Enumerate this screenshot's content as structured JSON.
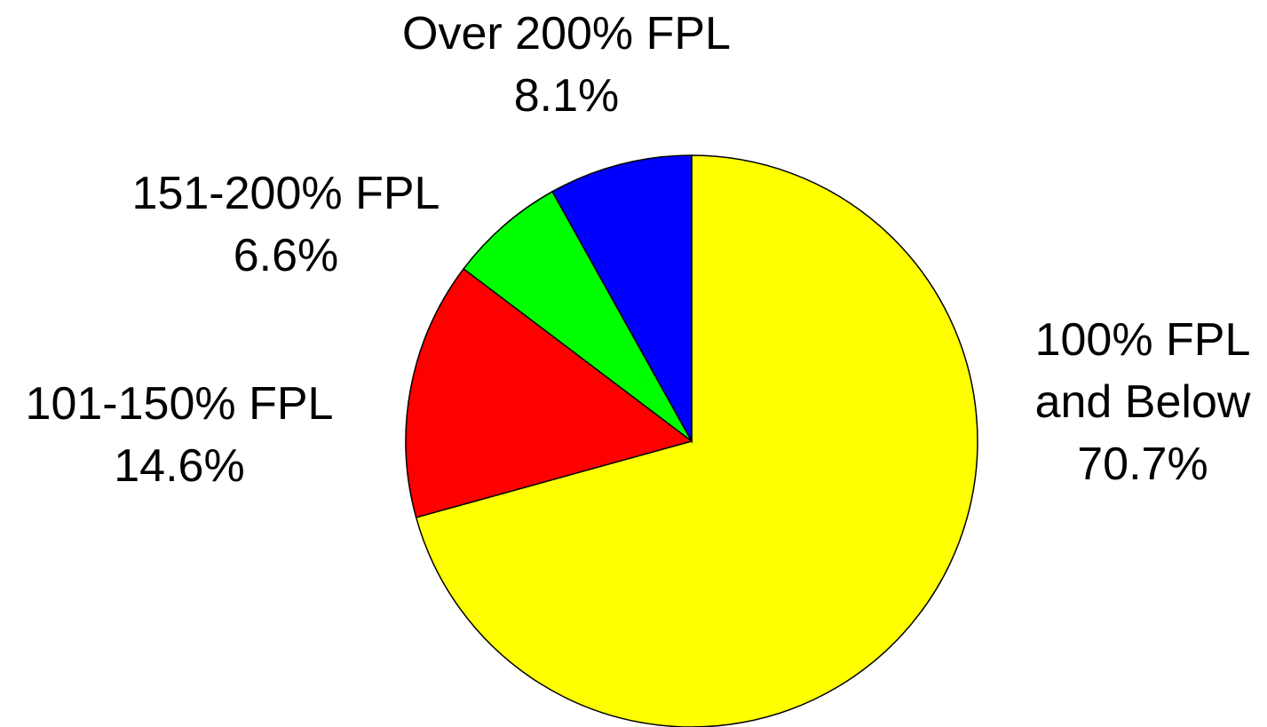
{
  "chart_data": {
    "type": "pie",
    "categories": [
      "100% FPL and Below",
      "101-150% FPL",
      "151-200% FPL",
      "Over 200% FPL"
    ],
    "values": [
      70.7,
      14.6,
      6.6,
      8.1
    ],
    "value_labels": [
      "70.7%",
      "14.6%",
      "6.6%",
      "8.1%"
    ],
    "colors": [
      "#ffff00",
      "#ff0000",
      "#00ff00",
      "#0000ff"
    ]
  }
}
